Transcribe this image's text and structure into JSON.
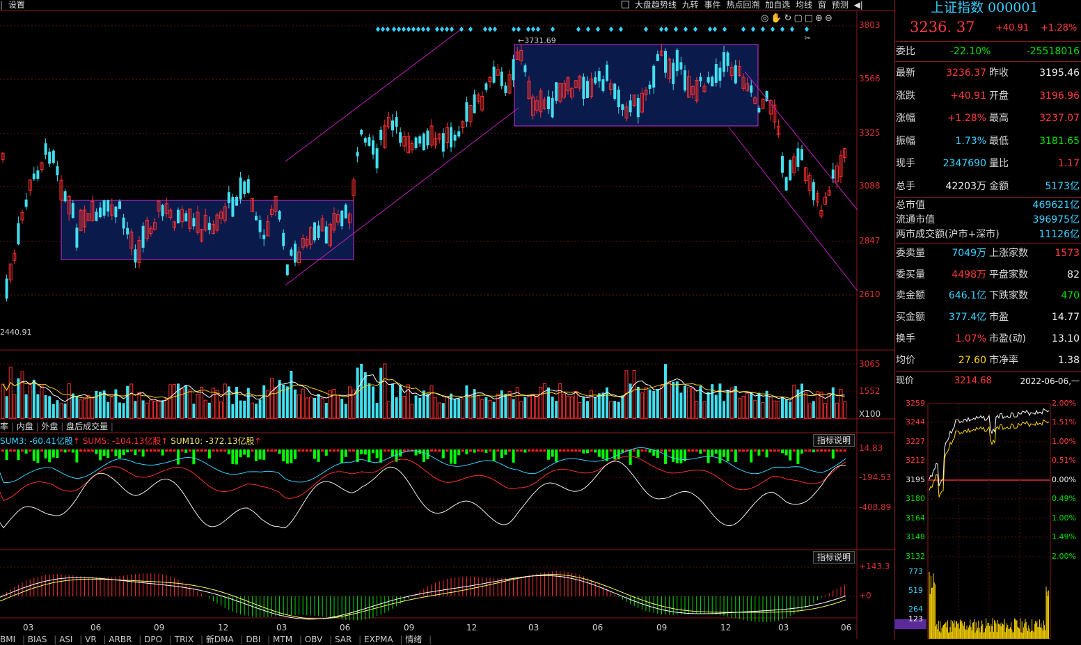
{
  "toolbar": {
    "settings": "设置",
    "items": [
      "大盘趋势线",
      "九转",
      "事件",
      "热点回溯",
      "加自选",
      "均线",
      "窗",
      "预测"
    ]
  },
  "main_chart": {
    "price_axis": [
      "3803",
      "3566",
      "3325",
      "3088",
      "2847",
      "2610"
    ],
    "high_marker": "3731.69",
    "low_marker": "2440.91",
    "volume_axis": [
      "3065",
      "1552",
      "X100"
    ],
    "volume_tabs": [
      "率",
      "内盘",
      "外盘",
      "盘后成交量"
    ],
    "sum_indicator": {
      "sum3": "SUM3: -60.41亿股",
      "sum5": "SUM5: -104.13亿股",
      "sum10": "SUM10: -372.13亿股",
      "axis": [
        "14.83",
        "-194.53",
        "-408.89"
      ],
      "help": "指标说明"
    },
    "macd_indicator": {
      "axis": [
        "+143.3",
        "+0"
      ],
      "help": "指标说明"
    },
    "x_axis": [
      "03",
      "06",
      "09",
      "12",
      "03",
      "06",
      "09",
      "12",
      "03",
      "06",
      "09",
      "12",
      "03",
      "06"
    ],
    "bottom_tabs": [
      "BMI",
      "BIAS",
      "ASI",
      "VR",
      "ARBR",
      "DPO",
      "TRIX",
      "新DMA",
      "DBI",
      "MTM",
      "OBV",
      "SAR",
      "EXPMA",
      "情绪"
    ]
  },
  "colors": {
    "up": "#ff3030",
    "down": "#40e0f0",
    "box": "#0a1a4a",
    "box_border": "#d030d0",
    "trend": "#c020c0"
  },
  "quote": {
    "title": "上证指数 000001",
    "price": "3236. 37",
    "change": "+40.91",
    "change_pct": "+1.28%",
    "weibi_label": "委比",
    "weibi": "-22.10%",
    "weicha": "-25518016",
    "rows": [
      {
        "k": "最新",
        "v": "3236.37",
        "vc": "red",
        "k2": "昨收",
        "v2": "3195.46",
        "v2c": "white"
      },
      {
        "k": "涨跌",
        "v": "+40.91",
        "vc": "red",
        "k2": "开盘",
        "v2": "3196.96",
        "v2c": "red"
      },
      {
        "k": "涨幅",
        "v": "+1.28%",
        "vc": "red",
        "k2": "最高",
        "v2": "3237.07",
        "v2c": "red"
      },
      {
        "k": "振幅",
        "v": "1.73%",
        "vc": "cyan",
        "k2": "最低",
        "v2": "3181.65",
        "v2c": "green"
      },
      {
        "k": "现手",
        "v": "2347690",
        "vc": "cyan",
        "k2": "量比",
        "v2": "1.17",
        "v2c": "red"
      },
      {
        "k": "总手",
        "v": "42203万",
        "vc": "white",
        "k2": "金额",
        "v2": "5173亿",
        "v2c": "cyan"
      }
    ],
    "market_rows": [
      {
        "k": "总市值",
        "v": "469621亿"
      },
      {
        "k": "流通市值",
        "v": "396975亿"
      },
      {
        "k": "两市成交额(沪市+深市)",
        "v": "11126亿"
      }
    ],
    "rows2": [
      {
        "k": "委卖量",
        "v": "7049万",
        "vc": "cyan",
        "k2": "上涨家数",
        "v2": "1573",
        "v2c": "red"
      },
      {
        "k": "委买量",
        "v": "4498万",
        "vc": "red",
        "k2": "平盘家数",
        "v2": "82",
        "v2c": "white"
      },
      {
        "k": "卖金额",
        "v": "646.1亿",
        "vc": "cyan",
        "k2": "下跌家数",
        "v2": "470",
        "v2c": "green"
      },
      {
        "k": "买金额",
        "v": "377.4亿",
        "vc": "cyan",
        "k2": "市盈",
        "v2": "14.77",
        "v2c": "white"
      },
      {
        "k": "换手",
        "v": "1.07%",
        "vc": "red",
        "k2": "市盈(动)",
        "v2": "13.10",
        "v2c": "white"
      },
      {
        "k": "均价",
        "v": "27.60",
        "vc": "yellow",
        "k2": "市净率",
        "v2": "1.38",
        "v2c": "white"
      }
    ],
    "now_label": "现价",
    "now_value": "3214.68",
    "date": "2022-06-06,一"
  },
  "intraday": {
    "left_axis": [
      "3259",
      "3244",
      "3227",
      "3212",
      "3195",
      "3180",
      "3164",
      "3148",
      "3132"
    ],
    "right_axis": [
      "2.00%",
      "1.51%",
      "1.00%",
      "0.51%",
      "0.00%",
      "0.49%",
      "1.00%",
      "1.49%",
      "2.00%"
    ],
    "vol_axis": [
      "773",
      "519",
      "264",
      "123"
    ]
  }
}
